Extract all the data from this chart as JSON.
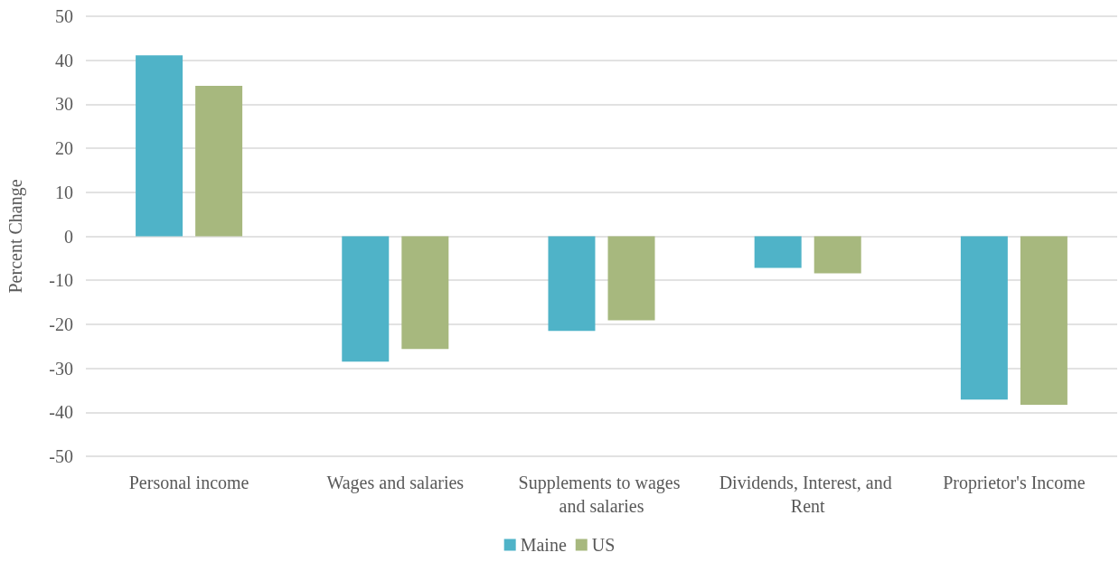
{
  "chart_data": {
    "type": "bar",
    "ylabel": "Percent Change",
    "categories": [
      "Personal income",
      "Wages and salaries",
      "Supplements to wages and salaries",
      "Dividends, Interest, and Rent",
      "Proprietor's Income"
    ],
    "series": [
      {
        "name": "Maine",
        "color": "#4fb3c8",
        "values": [
          41.1,
          -28.5,
          -21.5,
          -7.2,
          -37.1
        ]
      },
      {
        "name": "US",
        "color": "#a7b87e",
        "values": [
          34.2,
          -25.6,
          -19.1,
          -8.4,
          -38.3
        ]
      }
    ],
    "ylim": [
      -50,
      50
    ],
    "yticks": [
      -50,
      -40,
      -30,
      -20,
      -10,
      0,
      10,
      20,
      30,
      40,
      50
    ],
    "grid": "y",
    "legend": "bottom"
  }
}
